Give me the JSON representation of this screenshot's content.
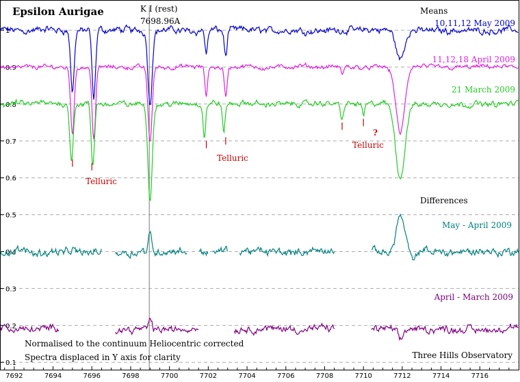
{
  "chart_data": {
    "type": "line",
    "title": "Epsilon Aurigae",
    "xlabel": "",
    "ylabel": "",
    "xlim": [
      7691.3,
      7718
    ],
    "ylim": [
      0.08,
      1.08
    ],
    "x_ticks": [
      7692,
      7694,
      7696,
      7698,
      7700,
      7702,
      7704,
      7706,
      7708,
      7710,
      7712,
      7714,
      7716
    ],
    "x_tick_labels": [
      "7692",
      "7694",
      "7696",
      "7698",
      "7700",
      "7702",
      "7704",
      "7706",
      "7708",
      "7710",
      "7712",
      "7714",
      "7716"
    ],
    "y_ticks": [
      0.1,
      0.2,
      0.3,
      0.4,
      0.5,
      0.6,
      0.7,
      0.8,
      0.9,
      1
    ],
    "y_tick_labels": [
      "0.1",
      "0.2",
      "0.3",
      "0.4",
      "0.5",
      "0.6",
      "0.7",
      "0.8",
      "0.9",
      "1"
    ],
    "grid": "horizontal dashed",
    "reference_line": {
      "x": 7698.96,
      "label_line1": "K I  (rest)",
      "label_line2": "7698.96A"
    },
    "series": [
      {
        "name": "10,11,12 May 2009",
        "color": "#0000cc",
        "baseline": 1.0,
        "noise": 0.012,
        "gaps": [],
        "lines": [
          {
            "center": 7695.0,
            "depth": 0.17,
            "width": 0.13
          },
          {
            "center": 7696.1,
            "depth": 0.19,
            "width": 0.13
          },
          {
            "center": 7699.0,
            "depth": 0.2,
            "width": 0.15
          },
          {
            "center": 7701.9,
            "depth": 0.06,
            "width": 0.1
          },
          {
            "center": 7702.9,
            "depth": 0.07,
            "width": 0.1
          },
          {
            "center": 7711.9,
            "depth": 0.08,
            "width": 0.3
          }
        ]
      },
      {
        "name": "11,12,18 April 2009",
        "color": "#e020e0",
        "baseline": 0.9,
        "noise": 0.008,
        "gaps": [],
        "lines": [
          {
            "center": 7695.0,
            "depth": 0.18,
            "width": 0.13
          },
          {
            "center": 7696.1,
            "depth": 0.19,
            "width": 0.13
          },
          {
            "center": 7699.0,
            "depth": 0.2,
            "width": 0.15
          },
          {
            "center": 7701.9,
            "depth": 0.08,
            "width": 0.1
          },
          {
            "center": 7702.9,
            "depth": 0.08,
            "width": 0.1
          },
          {
            "center": 7708.9,
            "depth": 0.02,
            "width": 0.1
          },
          {
            "center": 7711.9,
            "depth": 0.18,
            "width": 0.32
          }
        ]
      },
      {
        "name": "21 March 2009",
        "color": "#22cc22",
        "baseline": 0.8,
        "noise": 0.01,
        "gaps": [],
        "lines": [
          {
            "center": 7694.95,
            "depth": 0.15,
            "width": 0.12
          },
          {
            "center": 7696.05,
            "depth": 0.17,
            "width": 0.12
          },
          {
            "center": 7699.0,
            "depth": 0.26,
            "width": 0.16
          },
          {
            "center": 7701.8,
            "depth": 0.09,
            "width": 0.09
          },
          {
            "center": 7702.8,
            "depth": 0.08,
            "width": 0.09
          },
          {
            "center": 7708.9,
            "depth": 0.04,
            "width": 0.1
          },
          {
            "center": 7710.0,
            "depth": 0.03,
            "width": 0.08
          },
          {
            "center": 7711.9,
            "depth": 0.2,
            "width": 0.34
          }
        ]
      },
      {
        "name": "May - April 2009",
        "color": "#008080",
        "baseline": 0.4,
        "noise": 0.014,
        "gaps": [
          [
            7696.5,
            7697.2
          ],
          [
            7700.9,
            7701.5
          ],
          [
            7702.0,
            7702.2
          ],
          [
            7703.0,
            7703.6
          ],
          [
            7708.5,
            7710.4
          ]
        ],
        "lines": [
          {
            "center": 7699.0,
            "depth": -0.05,
            "width": 0.12
          },
          {
            "center": 7711.9,
            "depth": -0.1,
            "width": 0.3
          },
          {
            "center": 7712.6,
            "depth": 0.03,
            "width": 0.2
          }
        ]
      },
      {
        "name": "April - March 2009",
        "color": "#800080",
        "baseline": 0.19,
        "noise": 0.013,
        "gaps": [
          [
            7694.3,
            7697.2
          ],
          [
            7701.5,
            7703.3
          ],
          [
            7708.5,
            7710.4
          ]
        ],
        "lines": [
          {
            "center": 7699.0,
            "depth": -0.03,
            "width": 0.12
          },
          {
            "center": 7711.9,
            "depth": 0.03,
            "width": 0.2
          }
        ]
      }
    ],
    "annotations": {
      "means": "Means",
      "differences": "Differences",
      "telluric": "Telluric",
      "question": "?",
      "note1": "Normalised to the continuum   Heliocentric corrected",
      "note2": "Spectra displaced in Y axis for clarity",
      "observatory": "Three Hills Observatory"
    },
    "telluric_markers": [
      {
        "x": 7695.0,
        "y_top": 0.65,
        "y_bottom": 0.63,
        "color": "#cc0000"
      },
      {
        "x": 7696.0,
        "y_top": 0.64,
        "y_bottom": 0.62,
        "color": "#cc0000"
      },
      {
        "x": 7701.9,
        "y_top": 0.7,
        "y_bottom": 0.68,
        "color": "#cc0000"
      },
      {
        "x": 7702.9,
        "y_top": 0.71,
        "y_bottom": 0.69,
        "color": "#cc0000"
      },
      {
        "x": 7708.9,
        "y_top": 0.75,
        "y_bottom": 0.73,
        "color": "#cc0000"
      },
      {
        "x": 7710.0,
        "y_top": 0.76,
        "y_bottom": 0.74,
        "color": "#cc0000"
      }
    ]
  }
}
